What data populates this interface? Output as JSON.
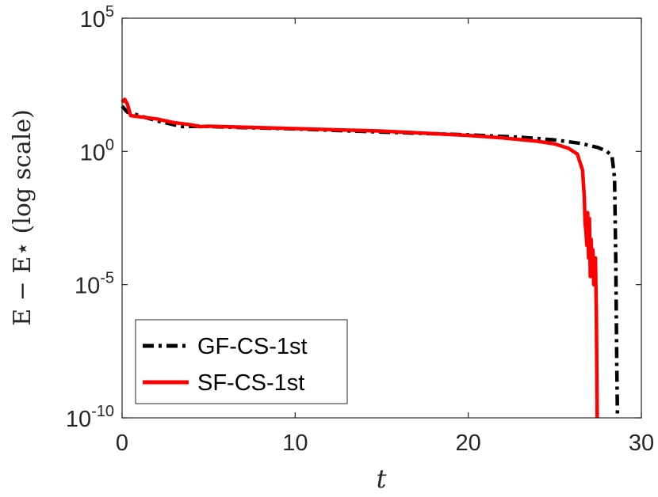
{
  "chart_data": {
    "type": "line",
    "xlabel": "t",
    "ylabel": "E − E⋆ (log scale)",
    "xlim": [
      0,
      30
    ],
    "ylim": [
      1e-10,
      100000.0
    ],
    "yscale": "log",
    "grid": false,
    "legend_position": "bottom-left",
    "x_ticks": [
      {
        "value": 0,
        "label": "0"
      },
      {
        "value": 10,
        "label": "10"
      },
      {
        "value": 20,
        "label": "20"
      },
      {
        "value": 30,
        "label": "30"
      }
    ],
    "y_ticks": [
      {
        "value": 100000.0,
        "base": "10",
        "exp": "5"
      },
      {
        "value": 1,
        "base": "10",
        "exp": "0"
      },
      {
        "value": 1e-05,
        "base": "10",
        "exp": "-5"
      },
      {
        "value": 1e-10,
        "base": "10",
        "exp": "-10"
      }
    ],
    "series": [
      {
        "name": "GF-CS-1st",
        "color": "#000000",
        "style": "dash-dot",
        "points": [
          [
            0,
            50
          ],
          [
            0.3,
            30
          ],
          [
            1,
            22
          ],
          [
            2,
            14
          ],
          [
            3,
            10
          ],
          [
            3.5,
            8.5
          ],
          [
            4.5,
            8.8
          ],
          [
            6,
            8.2
          ],
          [
            10,
            7
          ],
          [
            15,
            5.3
          ],
          [
            20,
            4.2
          ],
          [
            23,
            3.4
          ],
          [
            25,
            2.7
          ],
          [
            26.5,
            2
          ],
          [
            27.5,
            1.4
          ],
          [
            28.0,
            1.0
          ],
          [
            28.3,
            0.7
          ],
          [
            28.45,
            0.1
          ],
          [
            28.52,
            0.0001
          ],
          [
            28.58,
            1e-08
          ],
          [
            28.62,
            1e-10
          ]
        ]
      },
      {
        "name": "SF-CS-1st",
        "color": "#ff0000",
        "style": "solid",
        "points": [
          [
            0,
            70
          ],
          [
            0.15,
            90
          ],
          [
            0.3,
            60
          ],
          [
            0.5,
            22
          ],
          [
            1,
            20
          ],
          [
            2,
            16.5
          ],
          [
            3,
            12
          ],
          [
            3.5,
            11
          ],
          [
            4,
            10
          ],
          [
            4.5,
            8.5
          ],
          [
            5,
            8.8
          ],
          [
            10,
            7.2
          ],
          [
            15,
            5.8
          ],
          [
            20,
            4
          ],
          [
            22,
            3.2
          ],
          [
            24,
            2.4
          ],
          [
            25,
            1.9
          ],
          [
            25.8,
            1.3
          ],
          [
            26.3,
            0.8
          ],
          [
            26.6,
            0.2
          ],
          [
            26.7,
            0.02
          ],
          [
            26.75,
            0.002
          ],
          [
            26.8,
            0.001
          ],
          [
            26.85,
            0.0003
          ],
          [
            26.9,
            0.005
          ],
          [
            26.95,
            0.0001
          ],
          [
            27.0,
            0.003
          ],
          [
            27.05,
            2e-05
          ],
          [
            27.1,
            0.0005
          ],
          [
            27.15,
            3e-05
          ],
          [
            27.2,
            0.0002
          ],
          [
            27.25,
            1e-05
          ],
          [
            27.35,
            0.0001
          ],
          [
            27.4,
            1e-06
          ],
          [
            27.45,
            1e-10
          ]
        ]
      }
    ]
  }
}
